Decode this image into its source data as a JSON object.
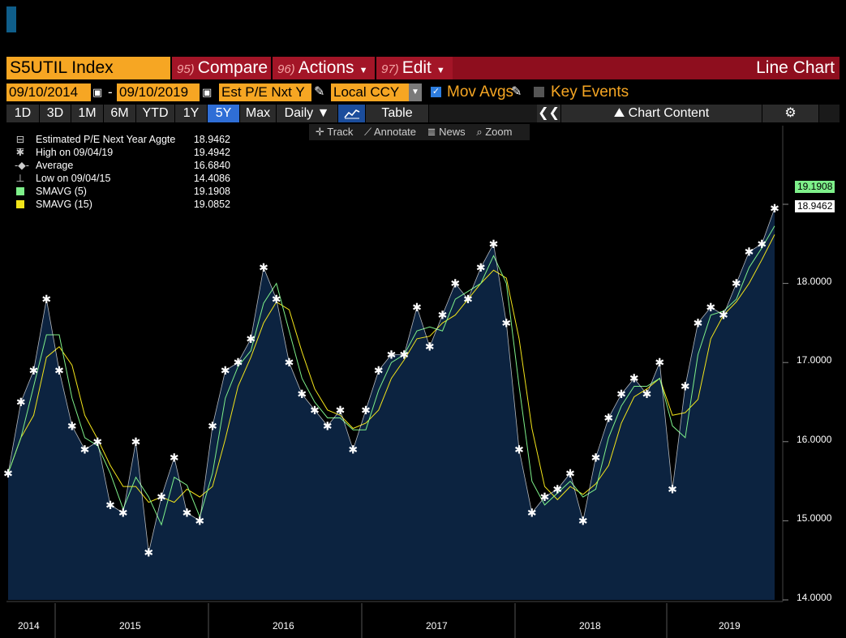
{
  "header": {
    "ticker": "S5UTIL Index",
    "compare_num": "95)",
    "compare_label": "Compare",
    "actions_num": "96)",
    "actions_label": "Actions",
    "edit_num": "97)",
    "edit_label": "Edit",
    "chart_type": "Line Chart"
  },
  "controls": {
    "start_date": "09/10/2014",
    "end_date": "09/10/2019",
    "field": "Est P/E Nxt Y",
    "currency": "Local CCY",
    "mov_avgs_label": "Mov Avgs",
    "key_events_label": "Key Events"
  },
  "tabs": [
    "1D",
    "3D",
    "1M",
    "6M",
    "YTD",
    "1Y",
    "5Y",
    "Max"
  ],
  "selected_tab": "5Y",
  "daily_label": "Daily ▼",
  "table_label": "Table",
  "chart_content_label": "Chart Content",
  "tools": {
    "track": "Track",
    "annotate": "Annotate",
    "news": "News",
    "zoom": "Zoom"
  },
  "legend": [
    {
      "label": "Estimated P/E Next Year Aggte",
      "value": "18.9462"
    },
    {
      "label": "High on 09/04/19",
      "value": "19.4942"
    },
    {
      "label": "Average",
      "value": "16.6840"
    },
    {
      "label": "Low on 09/04/15",
      "value": "14.4086"
    },
    {
      "label": "SMAVG (5)",
      "value": "19.1908"
    },
    {
      "label": "SMAVG (15)",
      "value": "19.0852"
    }
  ],
  "colors": {
    "area": "#0c2340",
    "sma5": "#7ef08a",
    "sma15": "#f2e41a",
    "accent": "#f6a623",
    "cmdbar": "#8e0e1e"
  },
  "chart_data": {
    "type": "area",
    "title": "",
    "ylim": [
      14.0,
      20.0
    ],
    "y_ticks": [
      "14.0000",
      "15.0000",
      "16.0000",
      "17.0000",
      "18.0000"
    ],
    "x_ticks": [
      "2014",
      "2015",
      "2016",
      "2017",
      "2018",
      "2019"
    ],
    "last_values": {
      "sma5": "19.1908",
      "series": "18.9462"
    },
    "series": [
      {
        "name": "Estimated P/E Next Year Aggte",
        "x": [
          "2014-09",
          "2014-10",
          "2014-11",
          "2014-12",
          "2015-01",
          "2015-02",
          "2015-03",
          "2015-04",
          "2015-05",
          "2015-06",
          "2015-07",
          "2015-08",
          "2015-09",
          "2015-10",
          "2015-11",
          "2015-12",
          "2016-01",
          "2016-02",
          "2016-03",
          "2016-04",
          "2016-05",
          "2016-06",
          "2016-07",
          "2016-08",
          "2016-09",
          "2016-10",
          "2016-11",
          "2016-12",
          "2017-01",
          "2017-02",
          "2017-03",
          "2017-04",
          "2017-05",
          "2017-06",
          "2017-07",
          "2017-08",
          "2017-09",
          "2017-10",
          "2017-11",
          "2017-12",
          "2018-01",
          "2018-02",
          "2018-03",
          "2018-04",
          "2018-05",
          "2018-06",
          "2018-07",
          "2018-08",
          "2018-09",
          "2018-10",
          "2018-11",
          "2018-12",
          "2019-01",
          "2019-02",
          "2019-03",
          "2019-04",
          "2019-05",
          "2019-06",
          "2019-07",
          "2019-08",
          "2019-09"
        ],
        "values": [
          15.6,
          16.5,
          16.9,
          17.8,
          16.9,
          16.2,
          15.9,
          16.0,
          15.2,
          15.1,
          16.0,
          14.6,
          15.3,
          15.8,
          15.1,
          15.0,
          16.2,
          16.9,
          17.0,
          17.3,
          18.2,
          17.8,
          17.0,
          16.6,
          16.4,
          16.2,
          16.4,
          15.9,
          16.4,
          16.9,
          17.1,
          17.1,
          17.7,
          17.2,
          17.6,
          18.0,
          17.8,
          18.2,
          18.5,
          17.5,
          15.9,
          15.1,
          15.3,
          15.4,
          15.6,
          15.0,
          15.8,
          16.3,
          16.6,
          16.8,
          16.6,
          17.0,
          15.4,
          16.7,
          17.5,
          17.7,
          17.6,
          18.0,
          18.4,
          18.5,
          18.95
        ]
      }
    ]
  }
}
